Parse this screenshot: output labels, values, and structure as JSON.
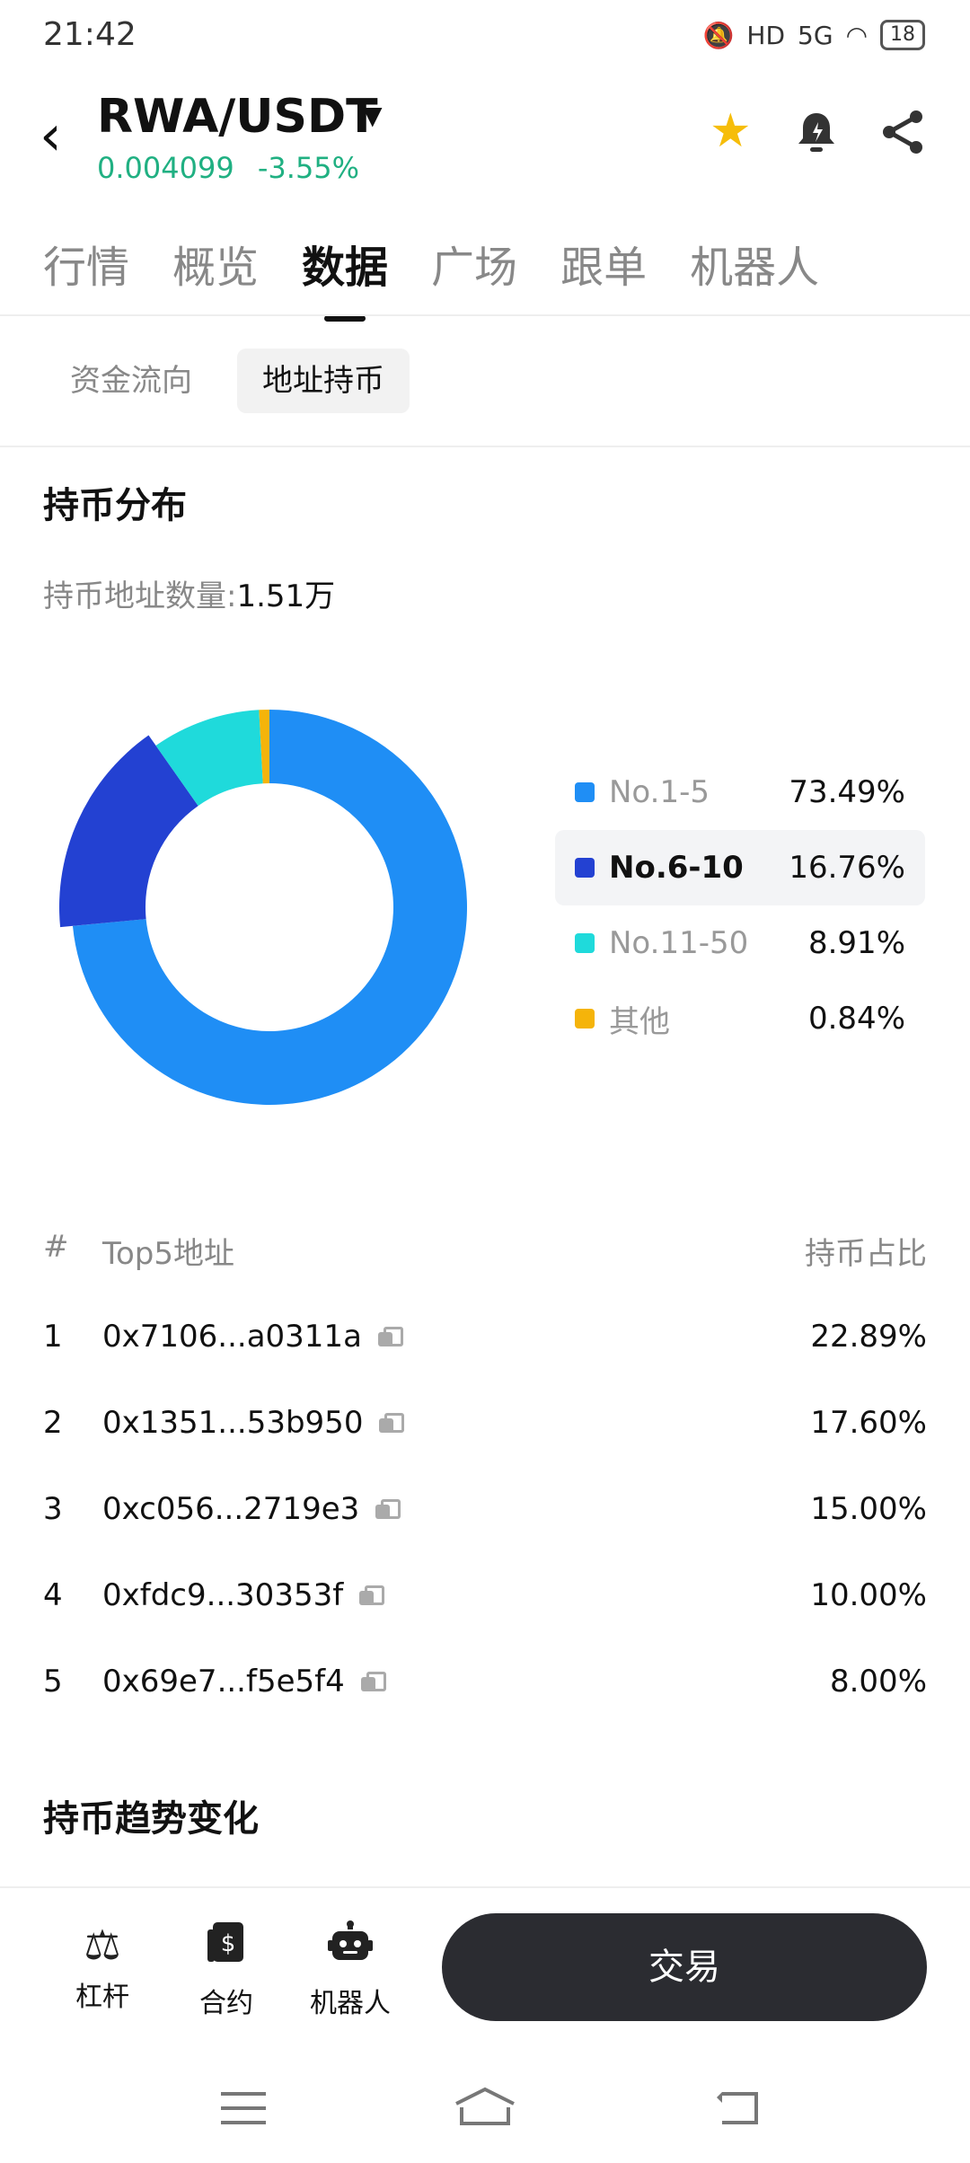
{
  "status": {
    "time": "21:42",
    "battery": "18",
    "network": "5G",
    "hd": "HD"
  },
  "header": {
    "pair": "RWA/USDT",
    "price": "0.004099",
    "change": "-3.55%"
  },
  "tabs": [
    {
      "label": "行情"
    },
    {
      "label": "概览"
    },
    {
      "label": "数据"
    },
    {
      "label": "广场"
    },
    {
      "label": "跟单"
    },
    {
      "label": "机器人"
    }
  ],
  "subtabs": [
    {
      "label": "资金流向"
    },
    {
      "label": "地址持币"
    }
  ],
  "distribution": {
    "title": "持币分布",
    "holders_label": "持币地址数量:",
    "holders_value": "1.51万"
  },
  "chart_data": {
    "type": "pie",
    "donut": true,
    "categories": [
      "No.1-5",
      "No.6-10",
      "No.11-50",
      "其他"
    ],
    "values": [
      73.49,
      16.76,
      8.91,
      0.84
    ],
    "value_labels": [
      "73.49%",
      "16.76%",
      "8.91%",
      "0.84%"
    ],
    "colors": [
      "#1f8ef5",
      "#2341d2",
      "#1fdadb",
      "#f5b40a"
    ],
    "highlighted": "No.6-10",
    "legend_position": "right"
  },
  "table": {
    "headers": {
      "index": "#",
      "address": "Top5地址",
      "share": "持币占比"
    },
    "rows": [
      {
        "index": "1",
        "address": "0x7106...a0311a",
        "share": "22.89%"
      },
      {
        "index": "2",
        "address": "0x1351...53b950",
        "share": "17.60%"
      },
      {
        "index": "3",
        "address": "0xc056...2719e3",
        "share": "15.00%"
      },
      {
        "index": "4",
        "address": "0xfdc9...30353f",
        "share": "10.00%"
      },
      {
        "index": "5",
        "address": "0x69e7...f5e5f4",
        "share": "8.00%"
      }
    ]
  },
  "trend": {
    "title": "持币趋势变化"
  },
  "bottombar": {
    "leverage": "杠杆",
    "contract": "合约",
    "robot": "机器人",
    "trade": "交易"
  }
}
